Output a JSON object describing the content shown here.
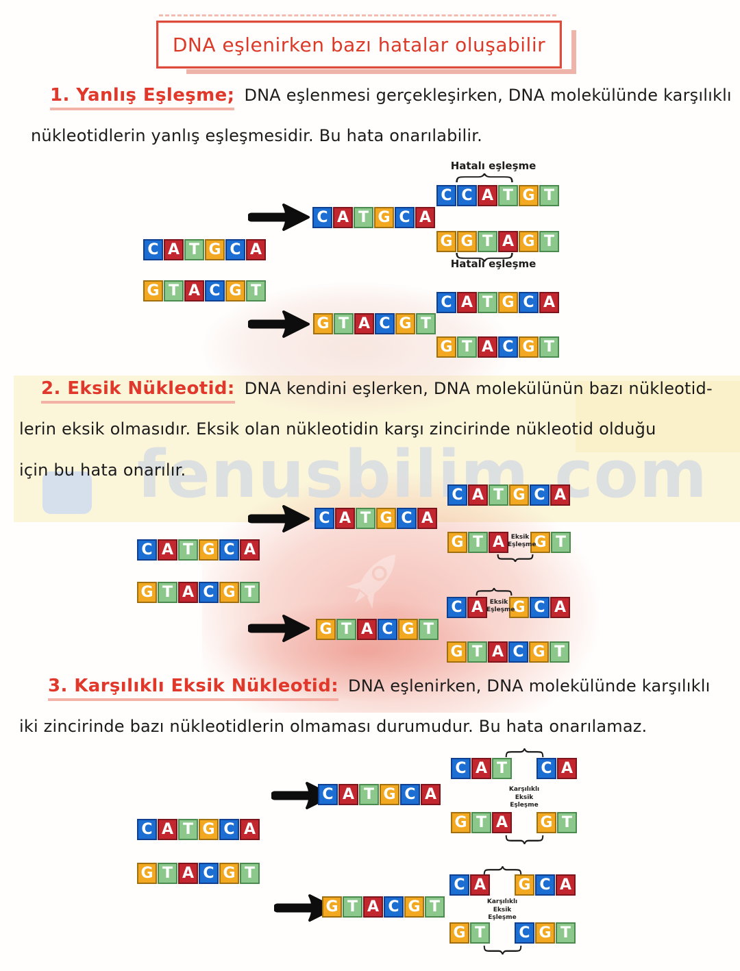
{
  "page": {
    "title": "DNA eşlenirken bazı hatalar oluşabilir",
    "watermark": "fenusbilim.com"
  },
  "tile_colors": {
    "C": "#1d6ed3",
    "A": "#c22730",
    "T": "#8cc88c",
    "G": "#f2a820"
  },
  "tile_borders": {
    "C": "#0f3f8e",
    "A": "#7c151b",
    "T": "#4a8a4e",
    "G": "#a06f10"
  },
  "sections": {
    "s1": {
      "heading": "1. Yanlış Eşleşme;",
      "line1": "DNA eşlenmesi gerçekleşirken, DNA molekülünde karşılıklı",
      "line2": "nükleotidlerin yanlış eşleşmesidir. Bu hata onarılabilir."
    },
    "s2": {
      "heading": "2. Eksik Nükleotid:",
      "line1": "DNA kendini eşlerken, DNA molekülünün bazı nükleotid-",
      "line2": "lerin eksik olmasıdır. Eksik olan nükleotidin karşı zincirinde nükleotid olduğu",
      "line3": "için bu hata onarılır."
    },
    "s3": {
      "heading": "3. Karşılıklı Eksik Nükleotid:",
      "line1": "DNA eşlenirken, DNA molekülünde karşılıklı",
      "line2": "iki zincirinde bazı nükleotidlerin olmaması durumudur. Bu hata onarılamaz."
    }
  },
  "labels": {
    "hatali_top": "Hatalı eşleşme",
    "hatali_bottom": "Hatalı eşleşme",
    "eksik_lines": [
      "Eksik",
      "Eşleşme"
    ],
    "karsilikli_lines": [
      "Karşılıklı",
      "Eksik",
      "Eşleşme"
    ]
  },
  "dna": {
    "d1": {
      "err_top": "CCATGT",
      "new_top": "CATGCA",
      "err_bottom": "GGTAGT",
      "orig_top": "CATGCA",
      "orig_bottom": "GTACGT",
      "ok_top": "CATGCA",
      "new_bottom": "GTACGT",
      "ok_bottom": "GTACGT"
    },
    "d2": {
      "pair1_top": "CATGCA",
      "new_top": "CATGCA",
      "pair1_bottom": {
        "segments": [
          "GTA",
          "GT"
        ],
        "gap": 30
      },
      "orig_top": "CATGCA",
      "orig_bottom": "GTACGT",
      "pair2_top": {
        "segments": [
          "CA",
          "GCA"
        ],
        "gap": 30
      },
      "new_bottom": "GTACGT",
      "pair2_bottom": "GTACGT"
    },
    "d3": {
      "pair1_top": {
        "segments": [
          "CAT",
          "CA"
        ],
        "gap": 34
      },
      "new_top": "CATGCA",
      "pair1_bottom": {
        "segments": [
          "GTA",
          "GT"
        ],
        "gap": 34
      },
      "orig_top": "CATGCA",
      "orig_bottom": "GTACGT",
      "pair2_top": {
        "segments": [
          "CA",
          "GCA"
        ],
        "gap": 34
      },
      "new_bottom": "GTACGT",
      "pair2_bottom": {
        "segments": [
          "GT",
          "CGT"
        ],
        "gap": 34
      }
    }
  }
}
